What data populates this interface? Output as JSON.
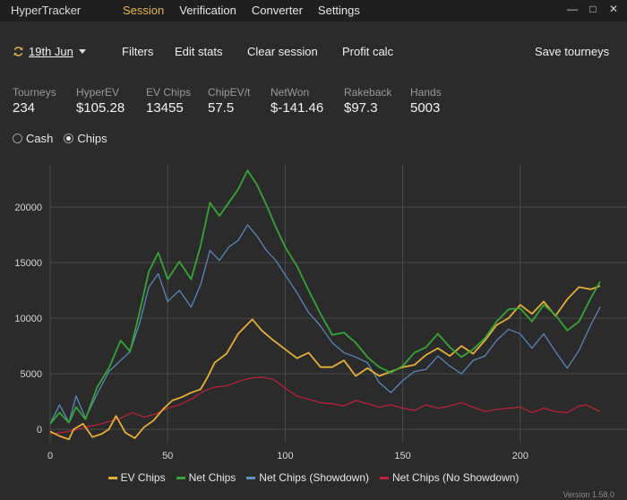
{
  "app": {
    "title": "HyperTracker",
    "version": "Version 1.58.0"
  },
  "nav": {
    "items": [
      {
        "label": "Session",
        "active": true
      },
      {
        "label": "Verification",
        "active": false
      },
      {
        "label": "Converter",
        "active": false
      },
      {
        "label": "Settings",
        "active": false
      }
    ]
  },
  "window_controls": {
    "minimize": "—",
    "maximize": "□",
    "close": "✕"
  },
  "toolbar": {
    "date": "19th Jun",
    "filters": "Filters",
    "edit_stats": "Edit stats",
    "clear_session": "Clear session",
    "profit_calc": "Profit calc",
    "save_tourneys": "Save tourneys"
  },
  "stats": [
    {
      "label": "Tourneys",
      "value": "234"
    },
    {
      "label": "HyperEV",
      "value": "$105.28"
    },
    {
      "label": "EV Chips",
      "value": "13455"
    },
    {
      "label": "ChipEV/t",
      "value": "57.5"
    },
    {
      "label": "NetWon",
      "value": "$-141.46"
    },
    {
      "label": "Rakeback",
      "value": "$97.3"
    },
    {
      "label": "Hands",
      "value": "5003"
    }
  ],
  "mode": {
    "options": [
      {
        "label": "Cash",
        "selected": false
      },
      {
        "label": "Chips",
        "selected": true
      }
    ]
  },
  "colors": {
    "ev_chips": "#e8b030",
    "net_chips": "#32a832",
    "showdown": "#5b8fc9",
    "no_showdown": "#c8203a",
    "grid": "#4a4a4a"
  },
  "chart_data": {
    "type": "line",
    "xlim": [
      0,
      234
    ],
    "ylim": [
      -1200,
      23800
    ],
    "x_ticks": [
      "0",
      "50",
      "100",
      "150",
      "200"
    ],
    "y_ticks": [
      "0",
      "5000",
      "10000",
      "15000",
      "20000"
    ],
    "series": [
      {
        "name": "EV Chips",
        "points": [
          [
            0,
            -200
          ],
          [
            4,
            -600
          ],
          [
            8,
            -900
          ],
          [
            10,
            0
          ],
          [
            14,
            500
          ],
          [
            18,
            -700
          ],
          [
            22,
            -400
          ],
          [
            25,
            0
          ],
          [
            28,
            1200
          ],
          [
            32,
            -300
          ],
          [
            36,
            -800
          ],
          [
            40,
            200
          ],
          [
            44,
            800
          ],
          [
            48,
            1800
          ],
          [
            52,
            2600
          ],
          [
            56,
            2900
          ],
          [
            60,
            3300
          ],
          [
            64,
            3600
          ],
          [
            67,
            4700
          ],
          [
            70,
            6000
          ],
          [
            75,
            6800
          ],
          [
            80,
            8600
          ],
          [
            86,
            9900
          ],
          [
            90,
            8900
          ],
          [
            95,
            8000
          ],
          [
            100,
            7200
          ],
          [
            105,
            6400
          ],
          [
            110,
            6900
          ],
          [
            115,
            5600
          ],
          [
            120,
            5600
          ],
          [
            125,
            6200
          ],
          [
            130,
            4800
          ],
          [
            135,
            5500
          ],
          [
            140,
            4800
          ],
          [
            145,
            5200
          ],
          [
            150,
            5600
          ],
          [
            155,
            5800
          ],
          [
            160,
            6700
          ],
          [
            165,
            7300
          ],
          [
            170,
            6600
          ],
          [
            175,
            7500
          ],
          [
            180,
            6800
          ],
          [
            185,
            8000
          ],
          [
            190,
            9400
          ],
          [
            195,
            10000
          ],
          [
            200,
            11200
          ],
          [
            205,
            10400
          ],
          [
            210,
            11500
          ],
          [
            215,
            10200
          ],
          [
            220,
            11700
          ],
          [
            225,
            12800
          ],
          [
            230,
            12600
          ],
          [
            234,
            12900
          ]
        ]
      },
      {
        "name": "Net Chips",
        "points": [
          [
            0,
            500
          ],
          [
            4,
            1500
          ],
          [
            8,
            600
          ],
          [
            11,
            2000
          ],
          [
            15,
            900
          ],
          [
            20,
            3800
          ],
          [
            25,
            5500
          ],
          [
            30,
            8000
          ],
          [
            34,
            7000
          ],
          [
            38,
            10500
          ],
          [
            42,
            14200
          ],
          [
            46,
            15900
          ],
          [
            50,
            13500
          ],
          [
            55,
            15100
          ],
          [
            60,
            13500
          ],
          [
            64,
            16500
          ],
          [
            68,
            20400
          ],
          [
            72,
            19200
          ],
          [
            76,
            20400
          ],
          [
            80,
            21600
          ],
          [
            84,
            23300
          ],
          [
            88,
            22000
          ],
          [
            92,
            20200
          ],
          [
            96,
            18200
          ],
          [
            100,
            16400
          ],
          [
            105,
            14700
          ],
          [
            110,
            12500
          ],
          [
            115,
            10400
          ],
          [
            120,
            8500
          ],
          [
            125,
            8700
          ],
          [
            130,
            7800
          ],
          [
            135,
            6500
          ],
          [
            140,
            5600
          ],
          [
            145,
            5100
          ],
          [
            150,
            5700
          ],
          [
            155,
            6900
          ],
          [
            160,
            7400
          ],
          [
            165,
            8600
          ],
          [
            170,
            7400
          ],
          [
            175,
            6500
          ],
          [
            180,
            7200
          ],
          [
            185,
            8200
          ],
          [
            190,
            9700
          ],
          [
            195,
            10800
          ],
          [
            200,
            10900
          ],
          [
            205,
            9700
          ],
          [
            210,
            11200
          ],
          [
            215,
            10300
          ],
          [
            220,
            8900
          ],
          [
            225,
            9700
          ],
          [
            230,
            11800
          ],
          [
            234,
            13300
          ]
        ]
      },
      {
        "name": "Net Chips (Showdown)",
        "points": [
          [
            0,
            500
          ],
          [
            4,
            2200
          ],
          [
            8,
            600
          ],
          [
            11,
            3000
          ],
          [
            15,
            1000
          ],
          [
            20,
            3200
          ],
          [
            25,
            5200
          ],
          [
            30,
            6200
          ],
          [
            34,
            7000
          ],
          [
            38,
            9500
          ],
          [
            42,
            12800
          ],
          [
            46,
            14000
          ],
          [
            50,
            11500
          ],
          [
            55,
            12500
          ],
          [
            60,
            11000
          ],
          [
            64,
            13000
          ],
          [
            68,
            16100
          ],
          [
            72,
            15200
          ],
          [
            76,
            16400
          ],
          [
            80,
            17000
          ],
          [
            84,
            18400
          ],
          [
            88,
            17400
          ],
          [
            92,
            16100
          ],
          [
            96,
            15200
          ],
          [
            100,
            13900
          ],
          [
            105,
            12300
          ],
          [
            110,
            10500
          ],
          [
            115,
            9300
          ],
          [
            120,
            7800
          ],
          [
            125,
            6900
          ],
          [
            130,
            6500
          ],
          [
            135,
            6000
          ],
          [
            140,
            4200
          ],
          [
            145,
            3300
          ],
          [
            150,
            4400
          ],
          [
            155,
            5200
          ],
          [
            160,
            5400
          ],
          [
            165,
            6600
          ],
          [
            170,
            5700
          ],
          [
            175,
            5000
          ],
          [
            180,
            6200
          ],
          [
            185,
            6600
          ],
          [
            190,
            8000
          ],
          [
            195,
            9000
          ],
          [
            200,
            8600
          ],
          [
            205,
            7300
          ],
          [
            210,
            8600
          ],
          [
            215,
            7000
          ],
          [
            220,
            5500
          ],
          [
            225,
            7100
          ],
          [
            230,
            9400
          ],
          [
            234,
            11000
          ]
        ]
      },
      {
        "name": "Net Chips (No Showdown)",
        "points": [
          [
            0,
            -400
          ],
          [
            5,
            -300
          ],
          [
            10,
            -100
          ],
          [
            15,
            200
          ],
          [
            20,
            400
          ],
          [
            25,
            700
          ],
          [
            30,
            1000
          ],
          [
            35,
            1500
          ],
          [
            40,
            1100
          ],
          [
            45,
            1400
          ],
          [
            50,
            1900
          ],
          [
            55,
            2200
          ],
          [
            60,
            2700
          ],
          [
            65,
            3400
          ],
          [
            70,
            3800
          ],
          [
            75,
            3900
          ],
          [
            80,
            4300
          ],
          [
            85,
            4600
          ],
          [
            90,
            4700
          ],
          [
            95,
            4500
          ],
          [
            100,
            3700
          ],
          [
            105,
            3000
          ],
          [
            110,
            2700
          ],
          [
            115,
            2400
          ],
          [
            120,
            2300
          ],
          [
            125,
            2100
          ],
          [
            130,
            2600
          ],
          [
            135,
            2300
          ],
          [
            140,
            2000
          ],
          [
            145,
            2200
          ],
          [
            150,
            1900
          ],
          [
            155,
            1700
          ],
          [
            160,
            2200
          ],
          [
            165,
            1900
          ],
          [
            170,
            2100
          ],
          [
            175,
            2400
          ],
          [
            180,
            2000
          ],
          [
            185,
            1600
          ],
          [
            190,
            1800
          ],
          [
            195,
            1900
          ],
          [
            200,
            2000
          ],
          [
            205,
            1500
          ],
          [
            210,
            1900
          ],
          [
            215,
            1600
          ],
          [
            220,
            1500
          ],
          [
            225,
            2100
          ],
          [
            228,
            2200
          ],
          [
            232,
            1800
          ],
          [
            234,
            1600
          ]
        ]
      }
    ]
  }
}
